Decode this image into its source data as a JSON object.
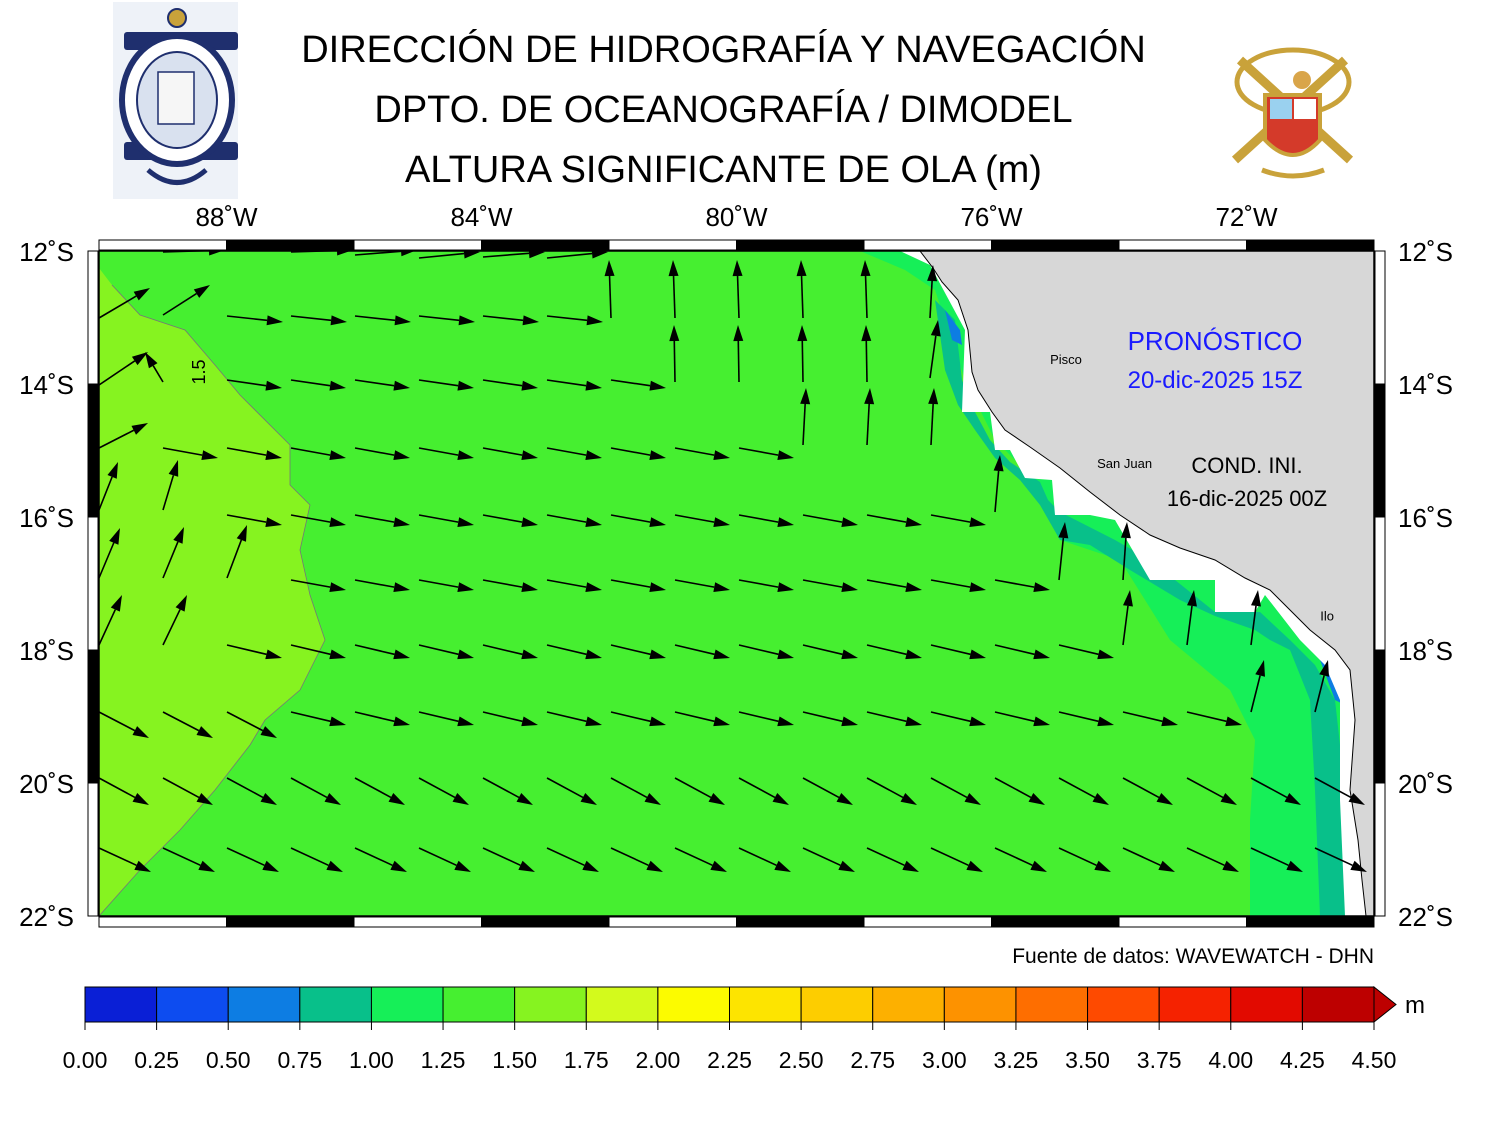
{
  "header": {
    "title_line1": "DIRECCIÓN DE HIDROGRAFÍA Y NAVEGACIÓN",
    "title_line2": "DPTO. DE OCEANOGRAFÍA / DIMODEL",
    "title_line3": "ALTURA SIGNIFICANTE DE OLA (m)",
    "logo_left": "Marina de Guerra del Perú - Dirección de Hidrografía y Navegación seal",
    "logo_right": "Marina de Guerra del Perú coat of arms"
  },
  "map": {
    "lon_labels": [
      "88˚W",
      "84˚W",
      "80˚W",
      "76˚W",
      "72˚W"
    ],
    "lat_labels": [
      "12˚S",
      "14˚S",
      "16˚S",
      "18˚S",
      "20˚S",
      "22˚S"
    ],
    "lon_values": [
      -88,
      -84,
      -80,
      -76,
      -72
    ],
    "lat_values": [
      -12,
      -14,
      -16,
      -18,
      -20,
      -22
    ],
    "lon_range": [
      -90,
      -70
    ],
    "lat_range": [
      -22,
      -12
    ],
    "contour_label": "1.5",
    "cities": [
      {
        "name": "Pisco",
        "lon": -75.3,
        "lat": -13.7
      },
      {
        "name": "San Juan",
        "lon": -74.5,
        "lat": -15.35
      },
      {
        "name": "Ilo",
        "lon": -71.0,
        "lat": -17.65
      }
    ],
    "forecast_label": "PRONÓSTICO",
    "forecast_date": "20-dic-2025 15Z",
    "init_label": "COND. INI.",
    "init_date": "16-dic-2025 00Z",
    "source": "Fuente de datos: WAVEWATCH - DHN"
  },
  "colorbar": {
    "unit": "m",
    "ticks": [
      "0.00",
      "0.25",
      "0.50",
      "0.75",
      "1.00",
      "1.25",
      "1.50",
      "1.75",
      "2.00",
      "2.25",
      "2.50",
      "2.75",
      "3.00",
      "3.25",
      "3.50",
      "3.75",
      "4.00",
      "4.25",
      "4.50"
    ],
    "colors": [
      "#0a1fd6",
      "#0d4cf0",
      "#0d7de3",
      "#08c08a",
      "#16ef58",
      "#46ef30",
      "#86f320",
      "#d3fa1c",
      "#fcfb00",
      "#fde400",
      "#fdcd00",
      "#fdb000",
      "#fd9200",
      "#fe6e00",
      "#fe4a00",
      "#f52200",
      "#e20a00",
      "#bd0000"
    ]
  },
  "theme": {
    "land": "#d7d7d7",
    "arrow": "#000000",
    "blue_text": "#1a1aff"
  }
}
